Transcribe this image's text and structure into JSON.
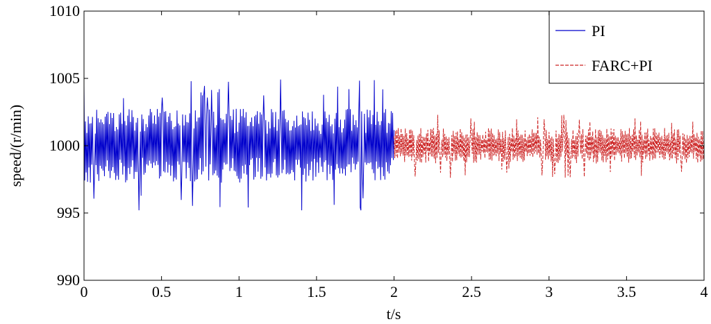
{
  "chart_data": {
    "type": "line",
    "title": "",
    "xlabel": "t/s",
    "ylabel": "speed/(r/min)",
    "xlim": [
      0,
      4
    ],
    "ylim": [
      990,
      1010
    ],
    "xticks": [
      0,
      0.5,
      1,
      1.5,
      2,
      2.5,
      3,
      3.5,
      4
    ],
    "xtick_labels": [
      "0",
      "0.5",
      "1",
      "1.5",
      "2",
      "2.5",
      "3",
      "3.5",
      "4"
    ],
    "yticks": [
      990,
      995,
      1000,
      1005,
      1010
    ],
    "ytick_labels": [
      "990",
      "995",
      "1000",
      "1005",
      "1010"
    ],
    "grid": false,
    "legend_position": "top-right",
    "series": [
      {
        "name": "PI",
        "color": "#0000cc",
        "style": "solid",
        "t_start": 0,
        "t_end": 2,
        "mean": 1000,
        "min": 995.2,
        "max": 1005.1,
        "typical_range": [
          997.5,
          1002.5
        ]
      },
      {
        "name": "FARC+PI",
        "color": "#cc2222",
        "style": "dashed",
        "t_start": 2,
        "t_end": 4,
        "mean": 1000,
        "min": 997.3,
        "max": 1002.5,
        "typical_range": [
          998.8,
          1001.2
        ]
      }
    ]
  }
}
